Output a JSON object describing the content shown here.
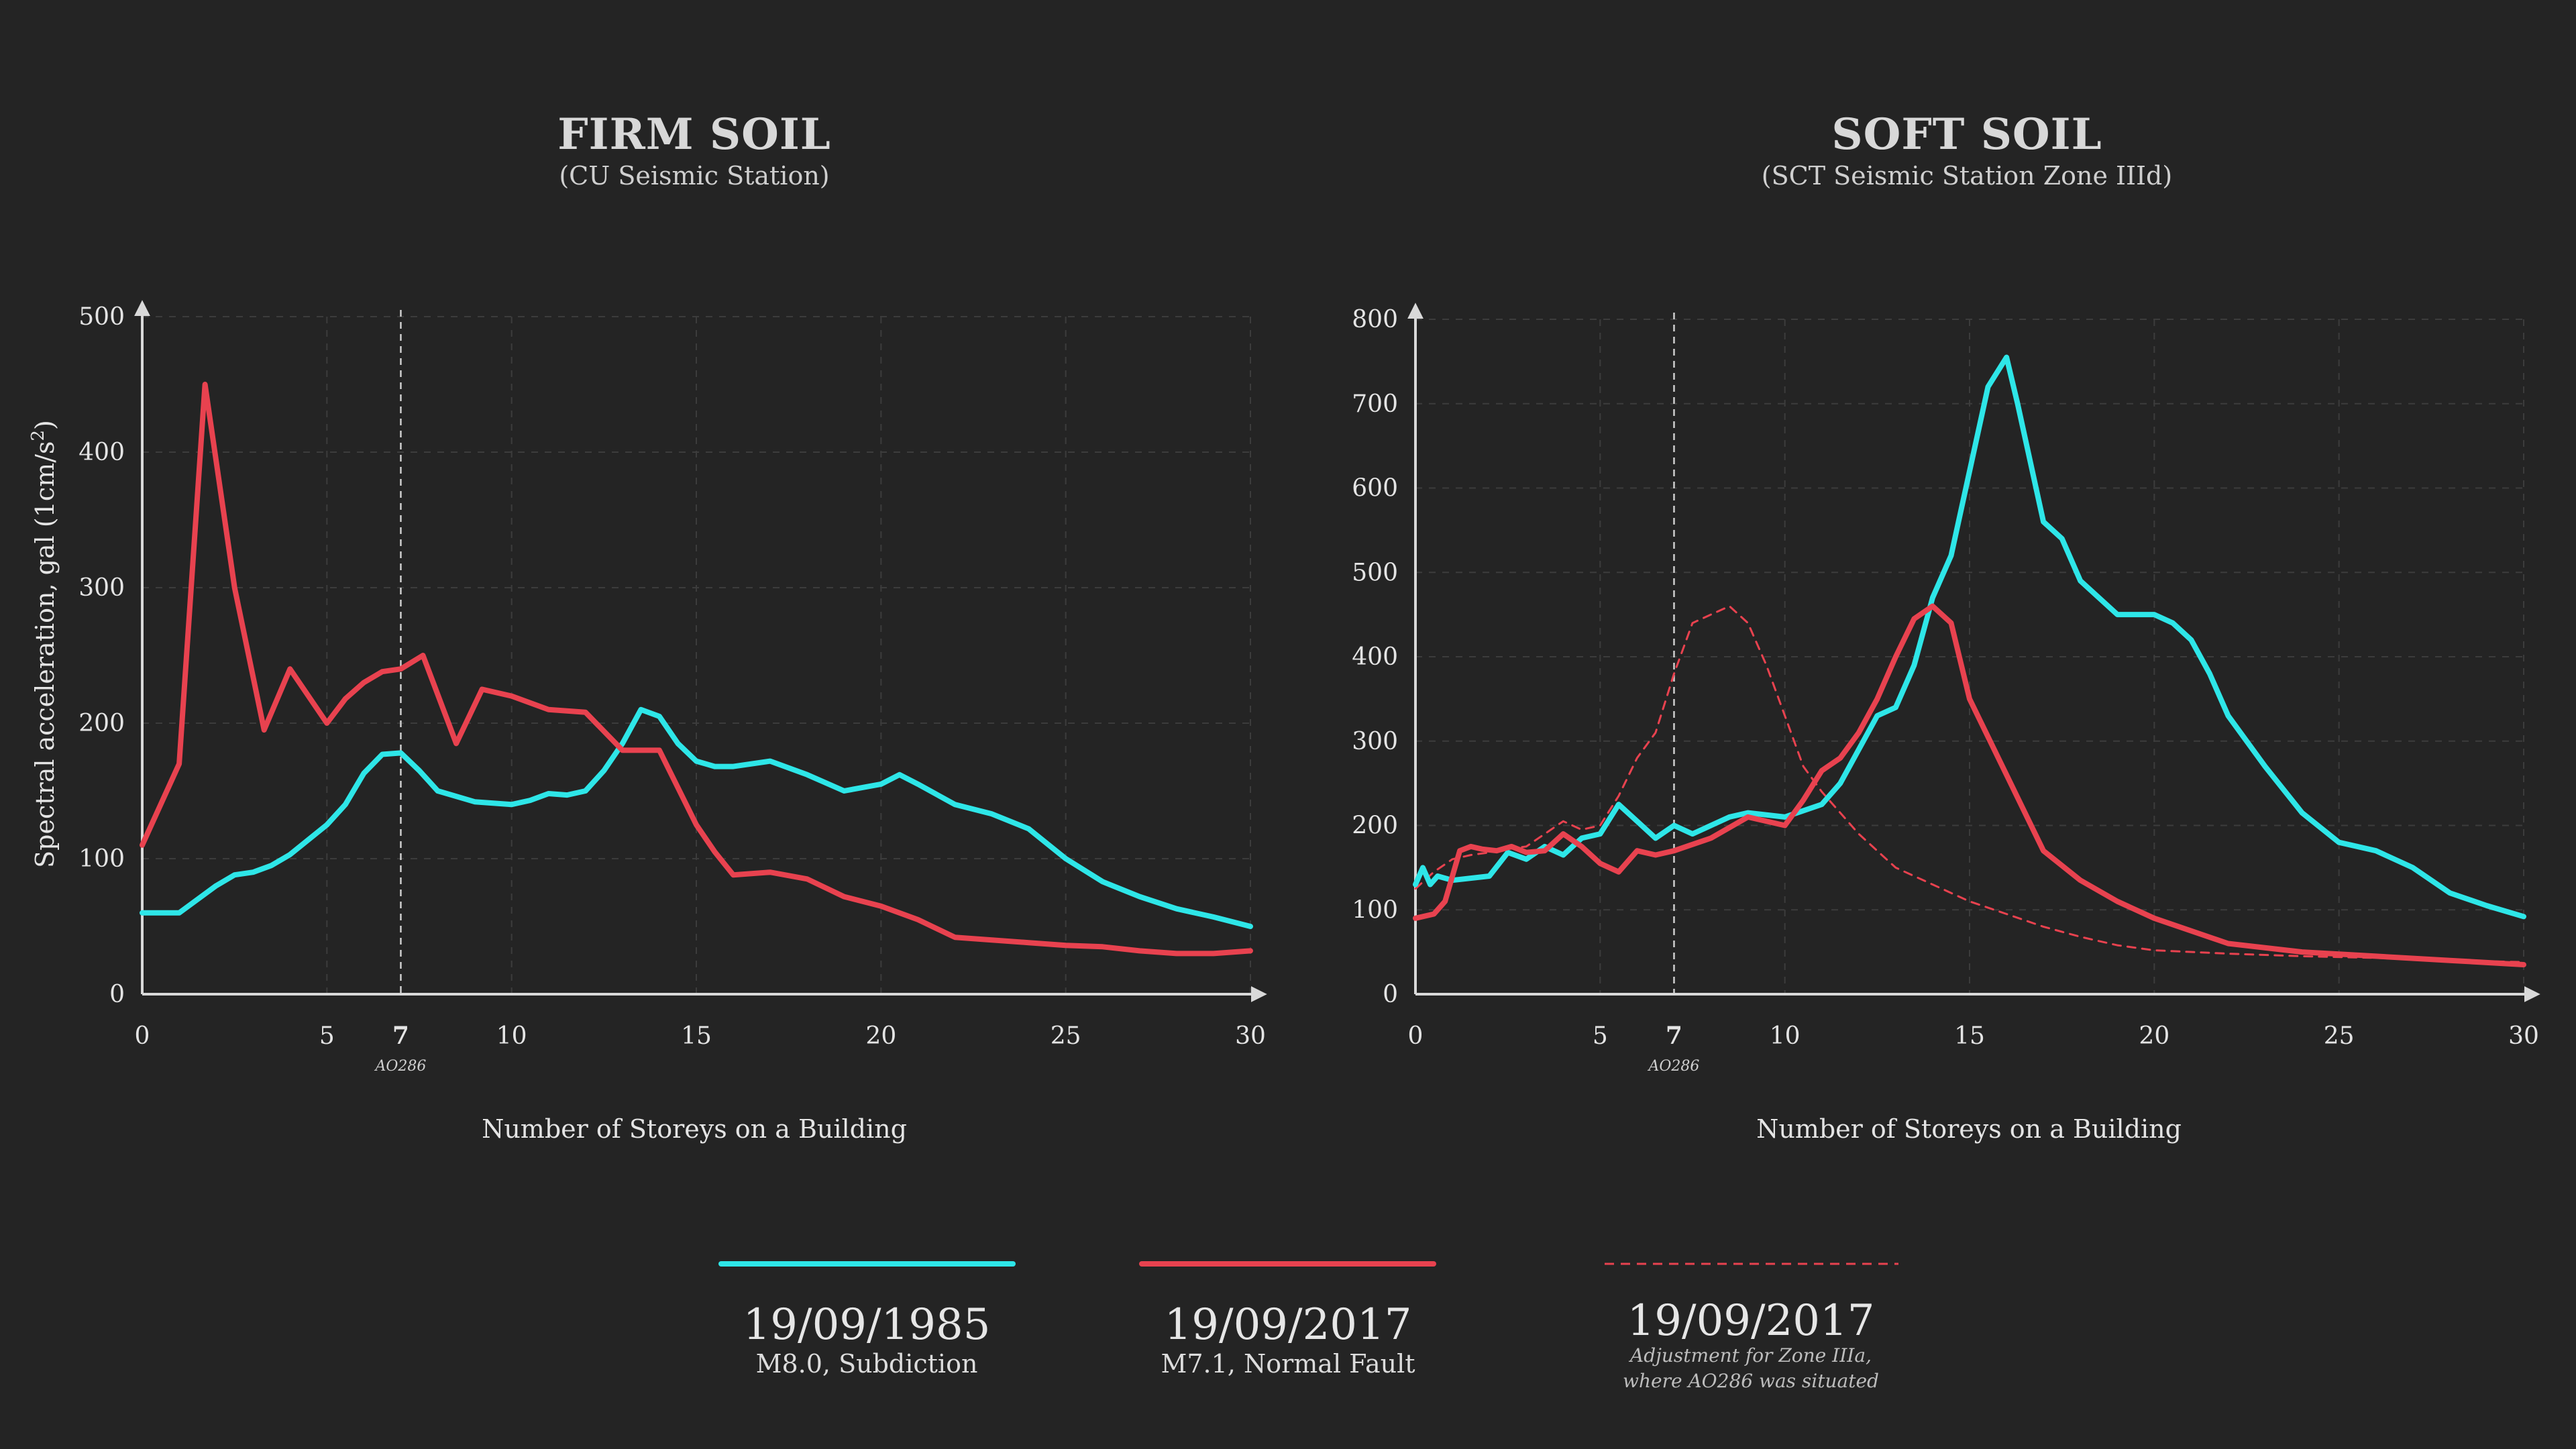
{
  "colors": {
    "background": "#242424",
    "cyan": "#2ee6e8",
    "red": "#e8424f",
    "axis": "#d9d9d9",
    "grid": "#3c3c3c"
  },
  "chart_data": [
    {
      "type": "line",
      "title": "FIRM SOIL",
      "subtitle": "(CU Seismic Station)",
      "xlabel": "Number of Storeys on a Building",
      "ylabel": "Spectral acceleration, gal (1cm/s²)",
      "xlim": [
        0,
        30
      ],
      "ylim": [
        0,
        500
      ],
      "xticks": [
        0,
        5,
        7,
        10,
        15,
        20,
        25,
        30
      ],
      "yticks": [
        0,
        100,
        200,
        300,
        400,
        500
      ],
      "marker": {
        "x": 7,
        "label": "AO286"
      },
      "grid": true,
      "series": [
        {
          "name": "19/09/1985",
          "color": "#2ee6e8",
          "x": [
            0,
            1,
            2,
            2.5,
            3,
            3.5,
            4,
            5,
            5.5,
            6,
            6.5,
            7,
            7.5,
            8,
            9,
            10,
            10.5,
            11,
            11.5,
            12,
            12.5,
            13,
            13.5,
            14,
            14.5,
            15,
            15.5,
            16,
            17,
            18,
            19,
            20,
            20.5,
            21,
            22,
            23,
            24,
            25,
            26,
            27,
            28,
            29,
            30
          ],
          "y": [
            60,
            60,
            80,
            88,
            90,
            95,
            103,
            125,
            140,
            163,
            177,
            178,
            165,
            150,
            142,
            140,
            143,
            148,
            147,
            150,
            165,
            185,
            210,
            205,
            185,
            172,
            168,
            168,
            172,
            162,
            150,
            155,
            162,
            155,
            140,
            133,
            122,
            100,
            83,
            72,
            63,
            57,
            50
          ]
        },
        {
          "name": "19/09/2017",
          "color": "#e8424f",
          "x": [
            0,
            1,
            1.7,
            2.5,
            3.3,
            4,
            5,
            5.5,
            6,
            6.5,
            7,
            7.6,
            8.5,
            9.2,
            10,
            11,
            12,
            13,
            14,
            15,
            15.5,
            16,
            17,
            18,
            19,
            20,
            21,
            22,
            23,
            24,
            25,
            26,
            27,
            28,
            29,
            30
          ],
          "y": [
            110,
            170,
            450,
            300,
            195,
            240,
            200,
            218,
            230,
            238,
            240,
            250,
            185,
            225,
            220,
            210,
            208,
            180,
            180,
            125,
            105,
            88,
            90,
            85,
            72,
            65,
            55,
            42,
            40,
            38,
            36,
            35,
            32,
            30,
            30,
            32
          ]
        },
        {
          "name": "19/09/2017",
          "color": "#e8424f",
          "dashed": true,
          "x": [],
          "y": []
        }
      ]
    },
    {
      "type": "line",
      "title": "SOFT SOIL",
      "subtitle": "(SCT Seismic Station Zone IIId)",
      "xlabel": "Number of Storeys on a Building",
      "ylabel": "",
      "xlim": [
        0,
        30
      ],
      "ylim": [
        0,
        800
      ],
      "xticks": [
        0,
        5,
        7,
        10,
        15,
        20,
        25,
        30
      ],
      "yticks": [
        0,
        100,
        200,
        300,
        400,
        500,
        600,
        700,
        800
      ],
      "marker": {
        "x": 7,
        "label": "AO286"
      },
      "grid": true,
      "series": [
        {
          "name": "19/09/1985",
          "color": "#2ee6e8",
          "x": [
            0,
            0.2,
            0.4,
            0.6,
            1,
            2,
            2.5,
            3,
            3.5,
            4,
            4.5,
            5,
            5.5,
            6,
            6.5,
            7,
            7.5,
            8,
            8.5,
            9,
            10,
            11,
            11.5,
            12,
            12.5,
            13,
            13.5,
            14,
            14.5,
            15,
            15.5,
            16,
            16.3,
            16.6,
            17,
            17.5,
            18,
            19,
            20,
            20.5,
            21,
            21.5,
            22,
            23,
            24,
            25,
            26,
            27,
            28,
            29,
            30
          ],
          "y": [
            130,
            150,
            130,
            140,
            135,
            140,
            168,
            160,
            175,
            165,
            185,
            190,
            225,
            205,
            185,
            200,
            190,
            200,
            210,
            215,
            210,
            225,
            250,
            290,
            330,
            340,
            390,
            470,
            520,
            620,
            720,
            755,
            700,
            640,
            560,
            540,
            490,
            450,
            450,
            440,
            420,
            380,
            330,
            270,
            215,
            180,
            170,
            150,
            120,
            105,
            92
          ]
        },
        {
          "name": "19/09/2017",
          "color": "#e8424f",
          "x": [
            0,
            0.5,
            0.8,
            1.2,
            1.5,
            1.8,
            2.2,
            2.6,
            3,
            3.5,
            4,
            4.5,
            5,
            5.5,
            6,
            6.5,
            7,
            8,
            9,
            10,
            10.5,
            11,
            11.5,
            12,
            12.5,
            13,
            13.5,
            14,
            14.5,
            15,
            16,
            17,
            18,
            19,
            20,
            22,
            24,
            26,
            28,
            30
          ],
          "y": [
            90,
            95,
            110,
            170,
            175,
            172,
            170,
            175,
            168,
            170,
            190,
            175,
            155,
            145,
            170,
            165,
            170,
            185,
            210,
            200,
            230,
            265,
            280,
            310,
            350,
            400,
            445,
            460,
            440,
            350,
            260,
            170,
            135,
            110,
            90,
            60,
            50,
            45,
            40,
            35
          ]
        },
        {
          "name": "19/09/2017",
          "color": "#e8424f",
          "dashed": true,
          "x": [
            0,
            0.5,
            1,
            1.5,
            2,
            2.5,
            3,
            3.5,
            4,
            4.5,
            5,
            5.5,
            6,
            6.5,
            7,
            7.5,
            8,
            8.5,
            9,
            9.5,
            10,
            10.5,
            11,
            12,
            13,
            14,
            15,
            16,
            17,
            18,
            19,
            20,
            22,
            24,
            26,
            28,
            30
          ],
          "y": [
            125,
            145,
            160,
            165,
            168,
            172,
            175,
            190,
            205,
            195,
            200,
            235,
            280,
            310,
            380,
            440,
            450,
            460,
            440,
            390,
            330,
            270,
            240,
            190,
            150,
            130,
            110,
            95,
            80,
            68,
            58,
            52,
            48,
            45,
            43,
            40,
            38
          ]
        }
      ]
    }
  ],
  "legend": [
    {
      "date": "19/09/1985",
      "desc": "M8.0, Subdiction",
      "note": "",
      "color": "#2ee6e8",
      "dashed": false
    },
    {
      "date": "19/09/2017",
      "desc": "M7.1, Normal Fault",
      "note": "",
      "color": "#e8424f",
      "dashed": false
    },
    {
      "date": "19/09/2017",
      "desc": "",
      "note": "Adjustment for Zone IIIa,",
      "note2": "where AO286 was situated",
      "color": "#e8424f",
      "dashed": true
    }
  ]
}
